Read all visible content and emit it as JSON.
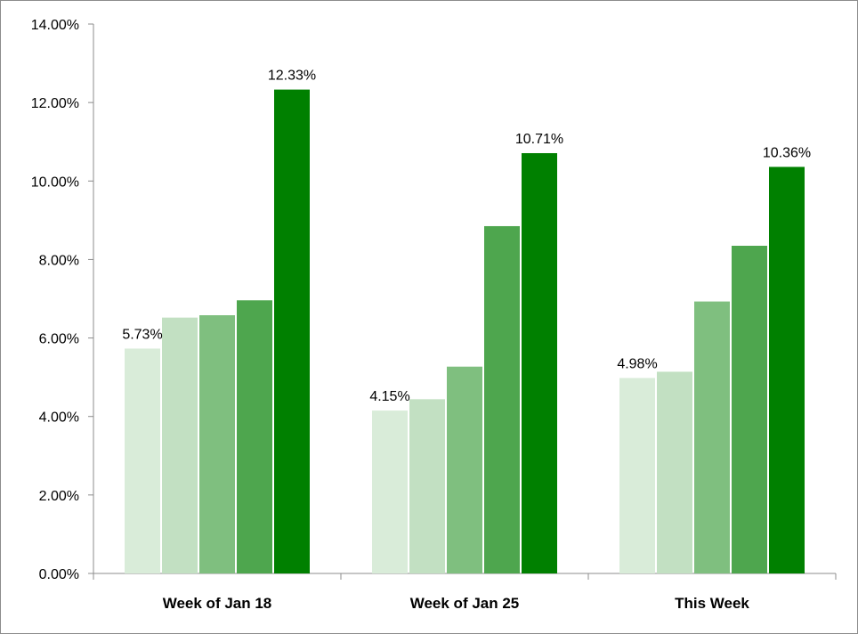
{
  "chart_data": {
    "type": "bar",
    "categories": [
      "Week of Jan 18",
      "Week of Jan 25",
      "This Week"
    ],
    "series": [
      {
        "values": [
          5.73,
          4.15,
          4.98
        ],
        "color": "#d9ecd9"
      },
      {
        "values": [
          6.52,
          4.44,
          5.14
        ],
        "color": "#c2e0c2"
      },
      {
        "values": [
          6.58,
          5.27,
          6.93
        ],
        "color": "#7fbf7f"
      },
      {
        "values": [
          6.96,
          8.85,
          8.35
        ],
        "color": "#4ea64e"
      },
      {
        "values": [
          12.33,
          10.71,
          10.36
        ],
        "color": "#008000"
      }
    ],
    "data_labels": [
      {
        "category_index": 0,
        "series_index": 0,
        "text": "5.73%"
      },
      {
        "category_index": 0,
        "series_index": 4,
        "text": "12.33%"
      },
      {
        "category_index": 1,
        "series_index": 0,
        "text": "4.15%"
      },
      {
        "category_index": 1,
        "series_index": 4,
        "text": "10.71%"
      },
      {
        "category_index": 2,
        "series_index": 0,
        "text": "4.98%"
      },
      {
        "category_index": 2,
        "series_index": 4,
        "text": "10.36%"
      }
    ],
    "ylim": [
      0,
      14
    ],
    "y_ticks": [
      0,
      2,
      4,
      6,
      8,
      10,
      12,
      14
    ],
    "y_tick_labels": [
      "0.00%",
      "2.00%",
      "4.00%",
      "6.00%",
      "8.00%",
      "10.00%",
      "12.00%",
      "14.00%"
    ],
    "grid": false,
    "legend": "none",
    "title": "",
    "xlabel": "",
    "ylabel": ""
  }
}
